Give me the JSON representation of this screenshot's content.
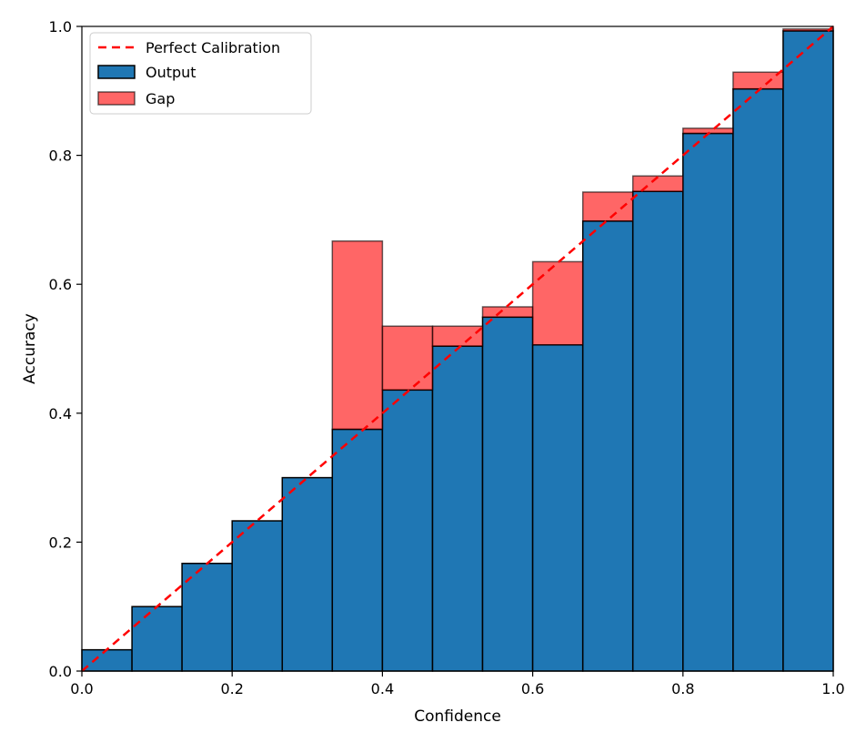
{
  "chart_data": {
    "type": "bar",
    "title": "",
    "xlabel": "Confidence",
    "ylabel": "Accuracy",
    "xlim": [
      0,
      1
    ],
    "ylim": [
      0,
      1
    ],
    "grid": false,
    "legend_position": "top-left",
    "x_ticks": [
      "0.0",
      "0.2",
      "0.4",
      "0.6",
      "0.8",
      "1.0"
    ],
    "y_ticks": [
      "0.0",
      "0.2",
      "0.4",
      "0.6",
      "0.8",
      "1.0"
    ],
    "legend": {
      "perfect": "Perfect Calibration",
      "output": "Output",
      "gap": "Gap"
    },
    "bin_edges": [
      0.0,
      0.0667,
      0.1333,
      0.2,
      0.2667,
      0.3333,
      0.4,
      0.4667,
      0.5333,
      0.6,
      0.6667,
      0.7333,
      0.8,
      0.8667,
      0.9333,
      1.0
    ],
    "series": [
      {
        "name": "Output",
        "values": [
          0.033,
          0.1,
          0.167,
          0.233,
          0.3,
          0.375,
          0.436,
          0.504,
          0.549,
          0.506,
          0.698,
          0.744,
          0.834,
          0.903,
          0.993
        ]
      },
      {
        "name": "Gap",
        "values": [
          0.033,
          0.1,
          0.167,
          0.233,
          0.3,
          0.667,
          0.535,
          0.535,
          0.565,
          0.635,
          0.743,
          0.768,
          0.842,
          0.929,
          0.996
        ]
      }
    ],
    "perfect_calibration": {
      "x": [
        0,
        1
      ],
      "y": [
        0,
        1
      ]
    },
    "colors": {
      "output": "#1f77b4",
      "gap": "#ff0000",
      "gap_alpha": 0.6,
      "perfect": "#ff0000",
      "edge": "#000000"
    }
  }
}
